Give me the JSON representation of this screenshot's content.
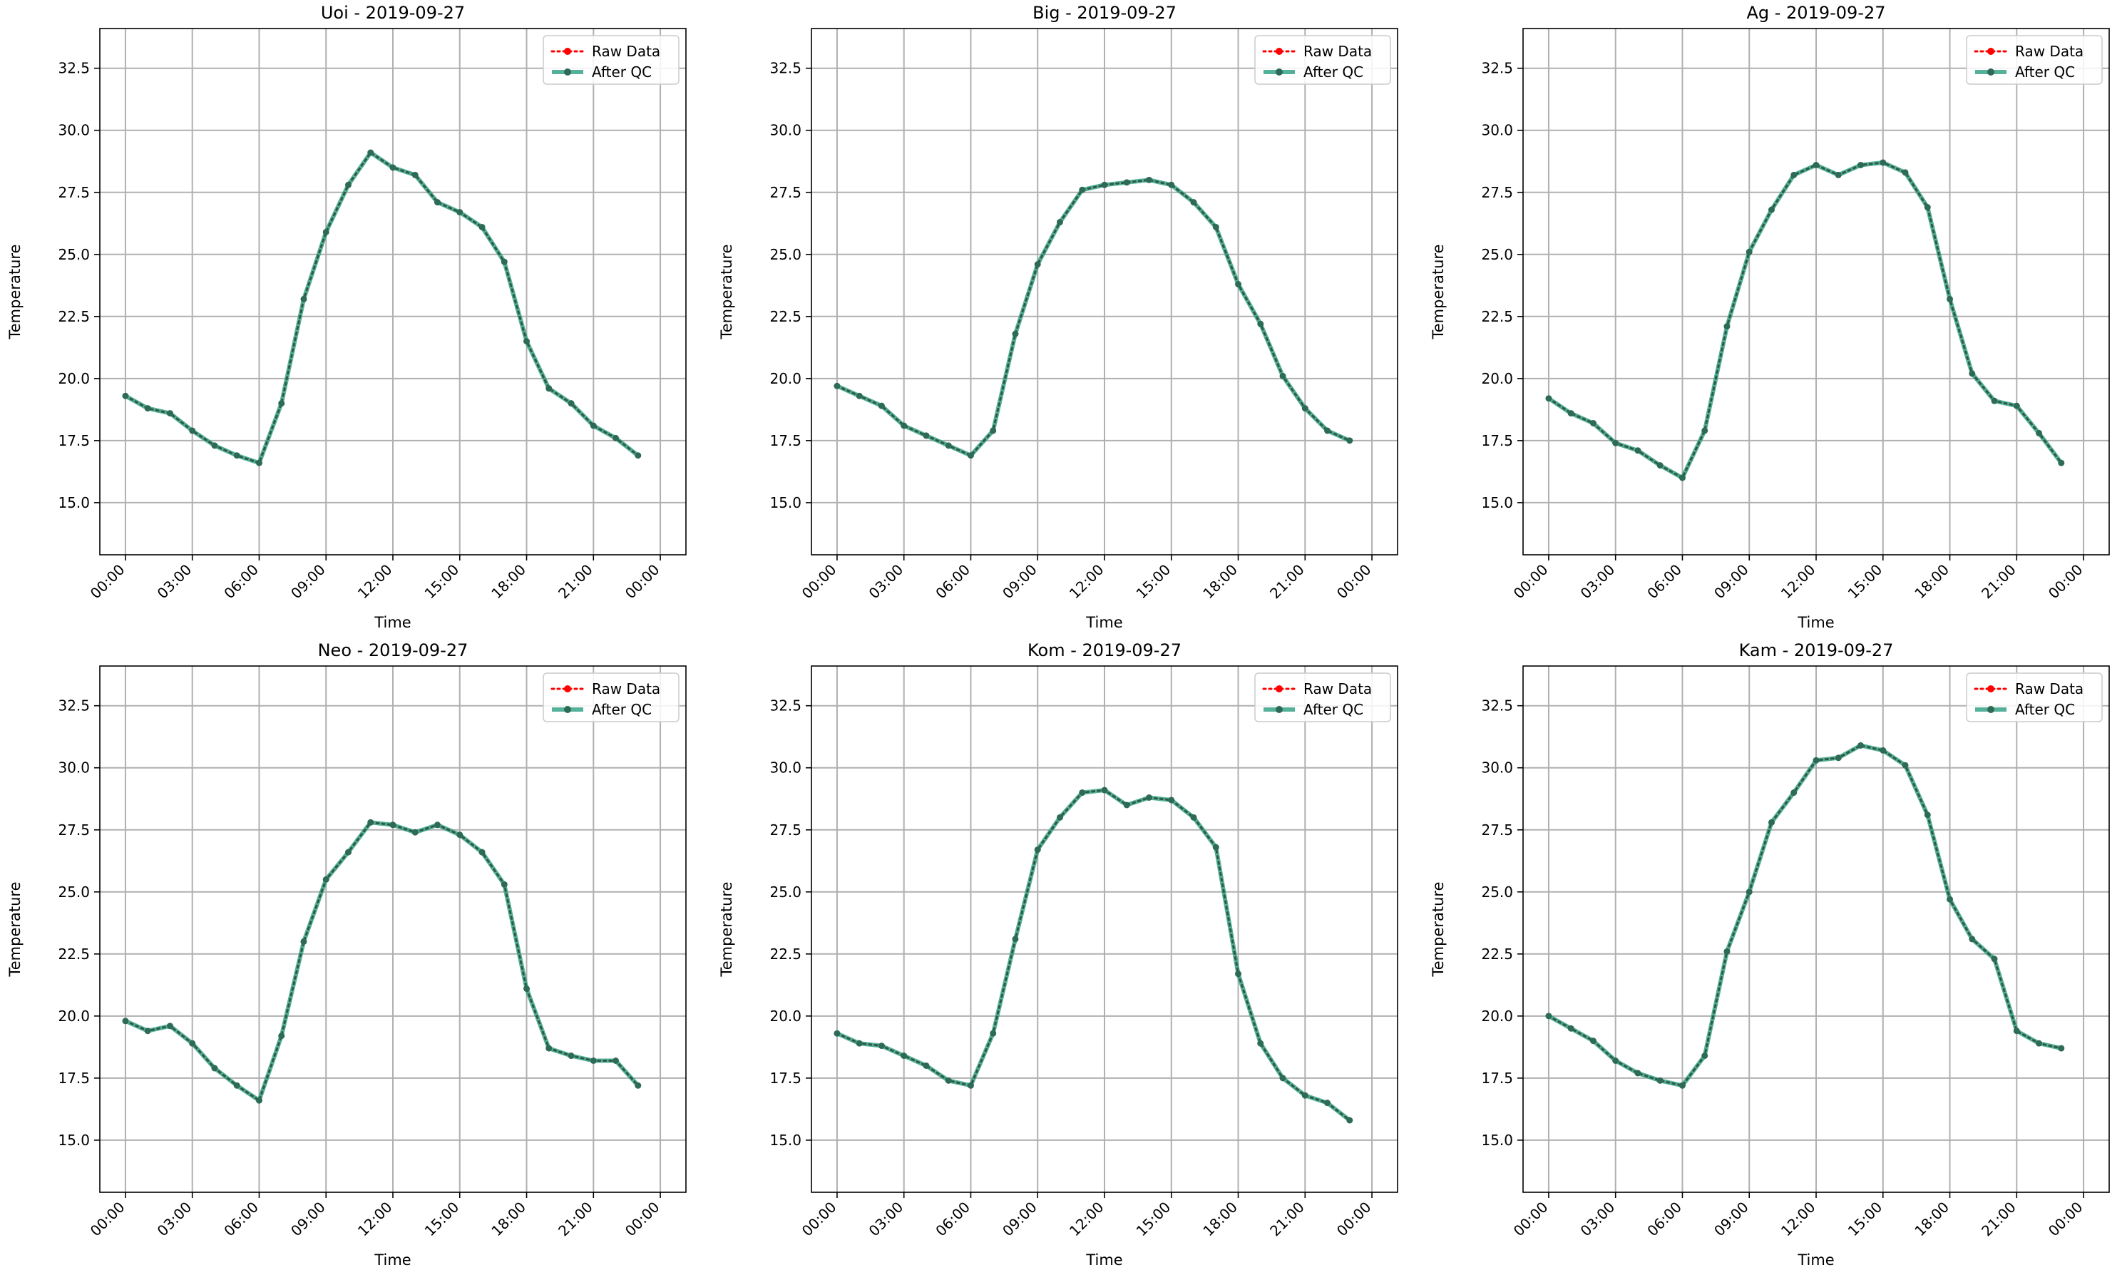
{
  "chart_data": [
    {
      "type": "line",
      "title": "Uoi - 2019-09-27",
      "xlabel": "Time",
      "ylabel": "Temperature",
      "ylim": [
        12.9,
        34.1
      ],
      "yticks": [
        15.0,
        17.5,
        20.0,
        22.5,
        25.0,
        27.5,
        30.0,
        32.5
      ],
      "ytick_labels": [
        "15.0",
        "17.5",
        "20.0",
        "22.5",
        "25.0",
        "27.5",
        "30.0",
        "32.5"
      ],
      "xticks": [
        "00:00",
        "03:00",
        "06:00",
        "09:00",
        "12:00",
        "15:00",
        "18:00",
        "21:00",
        "00:00"
      ],
      "grid": true,
      "legend_position": "top-right",
      "x": [
        "00:00",
        "01:00",
        "02:00",
        "03:00",
        "04:00",
        "05:00",
        "06:00",
        "07:00",
        "08:00",
        "09:00",
        "10:00",
        "11:00",
        "12:00",
        "13:00",
        "14:00",
        "15:00",
        "16:00",
        "17:00",
        "18:00",
        "19:00",
        "20:00",
        "21:00",
        "22:00",
        "23:00"
      ],
      "series": [
        {
          "name": "Raw Data",
          "color": "#ff0000",
          "values": [
            19.3,
            18.8,
            18.6,
            17.9,
            17.3,
            16.9,
            16.6,
            19.0,
            23.2,
            25.9,
            27.8,
            29.1,
            28.5,
            28.2,
            27.1,
            26.7,
            26.1,
            24.7,
            21.5,
            19.6,
            19.0,
            18.1,
            17.6,
            16.9
          ]
        },
        {
          "name": "After QC",
          "color": "#2a9d7f",
          "values": [
            19.3,
            18.8,
            18.6,
            17.9,
            17.3,
            16.9,
            16.6,
            19.0,
            23.2,
            25.9,
            27.8,
            29.1,
            28.5,
            28.2,
            27.1,
            26.7,
            26.1,
            24.7,
            21.5,
            19.6,
            19.0,
            18.1,
            17.6,
            16.9
          ]
        }
      ]
    },
    {
      "type": "line",
      "title": "Big - 2019-09-27",
      "xlabel": "Time",
      "ylabel": "Temperature",
      "ylim": [
        12.9,
        34.1
      ],
      "yticks": [
        15.0,
        17.5,
        20.0,
        22.5,
        25.0,
        27.5,
        30.0,
        32.5
      ],
      "ytick_labels": [
        "15.0",
        "17.5",
        "20.0",
        "22.5",
        "25.0",
        "27.5",
        "30.0",
        "32.5"
      ],
      "xticks": [
        "00:00",
        "03:00",
        "06:00",
        "09:00",
        "12:00",
        "15:00",
        "18:00",
        "21:00",
        "00:00"
      ],
      "grid": true,
      "legend_position": "top-right",
      "x": [
        "00:00",
        "01:00",
        "02:00",
        "03:00",
        "04:00",
        "05:00",
        "06:00",
        "07:00",
        "08:00",
        "09:00",
        "10:00",
        "11:00",
        "12:00",
        "13:00",
        "14:00",
        "15:00",
        "16:00",
        "17:00",
        "18:00",
        "19:00",
        "20:00",
        "21:00",
        "22:00",
        "23:00"
      ],
      "series": [
        {
          "name": "Raw Data",
          "color": "#ff0000",
          "values": [
            19.7,
            19.3,
            18.9,
            18.1,
            17.7,
            17.3,
            16.9,
            17.9,
            21.8,
            24.6,
            26.3,
            27.6,
            27.8,
            27.9,
            28.0,
            27.8,
            27.1,
            26.1,
            23.8,
            22.2,
            20.1,
            18.8,
            17.9,
            17.5
          ]
        },
        {
          "name": "After QC",
          "color": "#2a9d7f",
          "values": [
            19.7,
            19.3,
            18.9,
            18.1,
            17.7,
            17.3,
            16.9,
            17.9,
            21.8,
            24.6,
            26.3,
            27.6,
            27.8,
            27.9,
            28.0,
            27.8,
            27.1,
            26.1,
            23.8,
            22.2,
            20.1,
            18.8,
            17.9,
            17.5
          ]
        }
      ]
    },
    {
      "type": "line",
      "title": "Ag - 2019-09-27",
      "xlabel": "Time",
      "ylabel": "Temperature",
      "ylim": [
        12.9,
        34.1
      ],
      "yticks": [
        15.0,
        17.5,
        20.0,
        22.5,
        25.0,
        27.5,
        30.0,
        32.5
      ],
      "ytick_labels": [
        "15.0",
        "17.5",
        "20.0",
        "22.5",
        "25.0",
        "27.5",
        "30.0",
        "32.5"
      ],
      "xticks": [
        "00:00",
        "03:00",
        "06:00",
        "09:00",
        "12:00",
        "15:00",
        "18:00",
        "21:00",
        "00:00"
      ],
      "grid": true,
      "legend_position": "top-right",
      "x": [
        "00:00",
        "01:00",
        "02:00",
        "03:00",
        "04:00",
        "05:00",
        "06:00",
        "07:00",
        "08:00",
        "09:00",
        "10:00",
        "11:00",
        "12:00",
        "13:00",
        "14:00",
        "15:00",
        "16:00",
        "17:00",
        "18:00",
        "19:00",
        "20:00",
        "21:00",
        "22:00",
        "23:00"
      ],
      "series": [
        {
          "name": "Raw Data",
          "color": "#ff0000",
          "values": [
            19.2,
            18.6,
            18.2,
            17.4,
            17.1,
            16.5,
            16.0,
            17.9,
            22.1,
            25.1,
            26.8,
            28.2,
            28.6,
            28.2,
            28.6,
            28.7,
            28.3,
            26.9,
            23.2,
            20.2,
            19.1,
            18.9,
            17.8,
            16.6
          ]
        },
        {
          "name": "After QC",
          "color": "#2a9d7f",
          "values": [
            19.2,
            18.6,
            18.2,
            17.4,
            17.1,
            16.5,
            16.0,
            17.9,
            22.1,
            25.1,
            26.8,
            28.2,
            28.6,
            28.2,
            28.6,
            28.7,
            28.3,
            26.9,
            23.2,
            20.2,
            19.1,
            18.9,
            17.8,
            16.6
          ]
        }
      ]
    },
    {
      "type": "line",
      "title": "Neo - 2019-09-27",
      "xlabel": "Time",
      "ylabel": "Temperature",
      "ylim": [
        12.9,
        34.1
      ],
      "yticks": [
        15.0,
        17.5,
        20.0,
        22.5,
        25.0,
        27.5,
        30.0,
        32.5
      ],
      "ytick_labels": [
        "15.0",
        "17.5",
        "20.0",
        "22.5",
        "25.0",
        "27.5",
        "30.0",
        "32.5"
      ],
      "xticks": [
        "00:00",
        "03:00",
        "06:00",
        "09:00",
        "12:00",
        "15:00",
        "18:00",
        "21:00",
        "00:00"
      ],
      "grid": true,
      "legend_position": "top-right",
      "x": [
        "00:00",
        "01:00",
        "02:00",
        "03:00",
        "04:00",
        "05:00",
        "06:00",
        "07:00",
        "08:00",
        "09:00",
        "10:00",
        "11:00",
        "12:00",
        "13:00",
        "14:00",
        "15:00",
        "16:00",
        "17:00",
        "18:00",
        "19:00",
        "20:00",
        "21:00",
        "22:00",
        "23:00"
      ],
      "series": [
        {
          "name": "Raw Data",
          "color": "#ff0000",
          "values": [
            19.8,
            19.4,
            19.6,
            18.9,
            17.9,
            17.2,
            16.6,
            19.2,
            23.0,
            25.5,
            26.6,
            27.8,
            27.7,
            27.4,
            27.7,
            27.3,
            26.6,
            25.3,
            21.1,
            18.7,
            18.4,
            18.2,
            18.2,
            17.2
          ]
        },
        {
          "name": "After QC",
          "color": "#2a9d7f",
          "values": [
            19.8,
            19.4,
            19.6,
            18.9,
            17.9,
            17.2,
            16.6,
            19.2,
            23.0,
            25.5,
            26.6,
            27.8,
            27.7,
            27.4,
            27.7,
            27.3,
            26.6,
            25.3,
            21.1,
            18.7,
            18.4,
            18.2,
            18.2,
            17.2
          ]
        }
      ]
    },
    {
      "type": "line",
      "title": "Kom - 2019-09-27",
      "xlabel": "Time",
      "ylabel": "Temperature",
      "ylim": [
        12.9,
        34.1
      ],
      "yticks": [
        15.0,
        17.5,
        20.0,
        22.5,
        25.0,
        27.5,
        30.0,
        32.5
      ],
      "ytick_labels": [
        "15.0",
        "17.5",
        "20.0",
        "22.5",
        "25.0",
        "27.5",
        "30.0",
        "32.5"
      ],
      "xticks": [
        "00:00",
        "03:00",
        "06:00",
        "09:00",
        "12:00",
        "15:00",
        "18:00",
        "21:00",
        "00:00"
      ],
      "grid": true,
      "legend_position": "top-right",
      "x": [
        "00:00",
        "01:00",
        "02:00",
        "03:00",
        "04:00",
        "05:00",
        "06:00",
        "07:00",
        "08:00",
        "09:00",
        "10:00",
        "11:00",
        "12:00",
        "13:00",
        "14:00",
        "15:00",
        "16:00",
        "17:00",
        "18:00",
        "19:00",
        "20:00",
        "21:00",
        "22:00",
        "23:00"
      ],
      "series": [
        {
          "name": "Raw Data",
          "color": "#ff0000",
          "values": [
            19.3,
            18.9,
            18.8,
            18.4,
            18.0,
            17.4,
            17.2,
            19.3,
            23.1,
            26.7,
            28.0,
            29.0,
            29.1,
            28.5,
            28.8,
            28.7,
            28.0,
            26.8,
            21.7,
            18.9,
            17.5,
            16.8,
            16.5,
            15.8
          ]
        },
        {
          "name": "After QC",
          "color": "#2a9d7f",
          "values": [
            19.3,
            18.9,
            18.8,
            18.4,
            18.0,
            17.4,
            17.2,
            19.3,
            23.1,
            26.7,
            28.0,
            29.0,
            29.1,
            28.5,
            28.8,
            28.7,
            28.0,
            26.8,
            21.7,
            18.9,
            17.5,
            16.8,
            16.5,
            15.8
          ]
        }
      ]
    },
    {
      "type": "line",
      "title": "Kam - 2019-09-27",
      "xlabel": "Time",
      "ylabel": "Temperature",
      "ylim": [
        12.9,
        34.1
      ],
      "yticks": [
        15.0,
        17.5,
        20.0,
        22.5,
        25.0,
        27.5,
        30.0,
        32.5
      ],
      "ytick_labels": [
        "15.0",
        "17.5",
        "20.0",
        "22.5",
        "25.0",
        "27.5",
        "30.0",
        "32.5"
      ],
      "xticks": [
        "00:00",
        "03:00",
        "06:00",
        "09:00",
        "12:00",
        "15:00",
        "18:00",
        "21:00",
        "00:00"
      ],
      "grid": true,
      "legend_position": "top-right",
      "x": [
        "00:00",
        "01:00",
        "02:00",
        "03:00",
        "04:00",
        "05:00",
        "06:00",
        "07:00",
        "08:00",
        "09:00",
        "10:00",
        "11:00",
        "12:00",
        "13:00",
        "14:00",
        "15:00",
        "16:00",
        "17:00",
        "18:00",
        "19:00",
        "20:00",
        "21:00",
        "22:00",
        "23:00"
      ],
      "series": [
        {
          "name": "Raw Data",
          "color": "#ff0000",
          "values": [
            20.0,
            19.5,
            19.0,
            18.2,
            17.7,
            17.4,
            17.2,
            18.4,
            22.6,
            25.0,
            27.8,
            29.0,
            30.3,
            30.4,
            30.9,
            30.7,
            30.1,
            28.1,
            24.7,
            23.1,
            22.3,
            19.4,
            18.9,
            18.7
          ]
        },
        {
          "name": "After QC",
          "color": "#2a9d7f",
          "values": [
            20.0,
            19.5,
            19.0,
            18.2,
            17.7,
            17.4,
            17.2,
            18.4,
            22.6,
            25.0,
            27.8,
            29.0,
            30.3,
            30.4,
            30.9,
            30.7,
            30.1,
            28.1,
            24.7,
            23.1,
            22.3,
            19.4,
            18.9,
            18.7
          ]
        }
      ]
    }
  ]
}
